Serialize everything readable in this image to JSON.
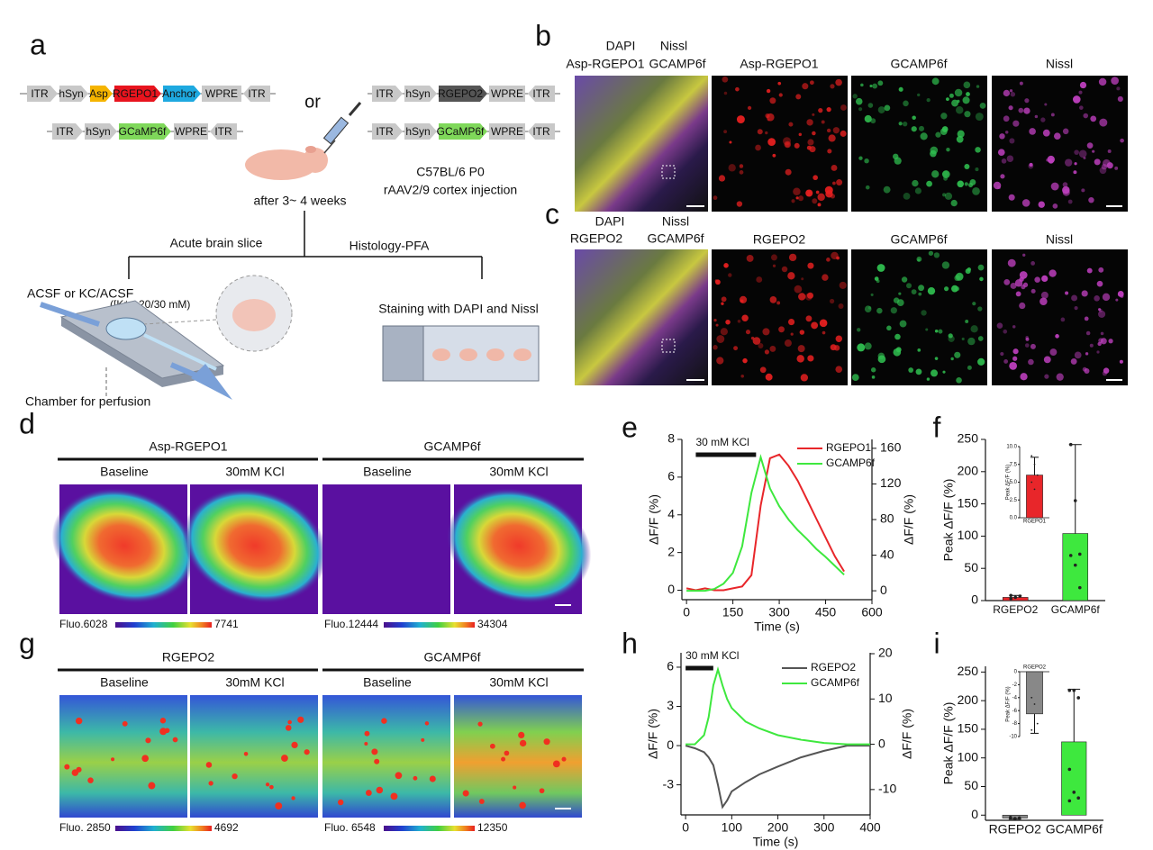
{
  "panel_labels": [
    "a",
    "b",
    "c",
    "d",
    "e",
    "f",
    "g",
    "h",
    "i"
  ],
  "panel_a": {
    "constructs": [
      [
        "ITR",
        "hSyn",
        "Asp",
        "RGEPO1",
        "Anchor",
        "WPRE",
        "ITR"
      ],
      [
        "ITR",
        "hSyn",
        "GCaMP6f",
        "WPRE",
        "ITR"
      ],
      [
        "ITR",
        "hSyn",
        "RGEPO2",
        "WPRE",
        "ITR"
      ],
      [
        "ITR",
        "hSyn",
        "GCaMP6f",
        "WPRE",
        "ITR"
      ]
    ],
    "or": "or",
    "mouse_strain": "C57BL/6 P0",
    "injection": "rAAV2/9 cortex injection",
    "timing": "after 3~ 4 weeks",
    "branch_left": "Acute brain slice",
    "branch_right": "Histology-PFA",
    "solution": "ACSF or KC/ACSF",
    "concentration": "([K⁺= 20/30 mM)",
    "chamber": "Chamber for perfusion",
    "staining": "Staining with DAPI and Nissl"
  },
  "panel_b": {
    "merge_labels": [
      "DAPI",
      "Nissl",
      "Asp-RGEPO1",
      "GCAMP6f"
    ],
    "columns": [
      "Asp-RGEPO1",
      "GCAMP6f",
      "Nissl"
    ]
  },
  "panel_c": {
    "merge_labels": [
      "DAPI",
      "Nissl",
      "RGEPO2",
      "GCAMP6f"
    ],
    "columns": [
      "RGEPO2",
      "GCAMP6f",
      "Nissl"
    ]
  },
  "panel_d": {
    "groups": [
      "Asp-RGEPO1",
      "GCAMP6f"
    ],
    "conditions": [
      "Baseline",
      "30mM KCl",
      "Baseline",
      "30mM KCl"
    ],
    "colorbars": [
      [
        "Fluo.6028",
        "7741"
      ],
      [
        "Fluo.12444",
        "34304"
      ]
    ]
  },
  "panel_g": {
    "groups": [
      "RGEPO2",
      "GCAMP6f"
    ],
    "conditions": [
      "Baseline",
      "30mM KCl",
      "Baseline",
      "30mM KCl"
    ],
    "colorbars": [
      [
        "Fluo. 2850",
        "4692"
      ],
      [
        "Fluo. 6548",
        "12350"
      ]
    ]
  },
  "chart_data": [
    {
      "type": "line",
      "x": [
        0,
        30,
        60,
        90,
        120,
        150,
        180,
        210,
        240,
        270,
        300,
        330,
        360,
        390,
        420,
        450,
        480,
        510
      ],
      "series": [
        {
          "name": "RGEPO1",
          "color": "#e8262a",
          "values": [
            0.1,
            0,
            0.1,
            0,
            0,
            0.1,
            0.2,
            0.8,
            4.5,
            7.0,
            7.2,
            6.6,
            5.8,
            4.8,
            3.8,
            2.8,
            1.8,
            1.0
          ]
        },
        {
          "name": "GCAMP6f",
          "color": "#3ee83e",
          "axis": "y2",
          "values": [
            0,
            0,
            0,
            2,
            8,
            20,
            50,
            110,
            150,
            115,
            95,
            80,
            68,
            58,
            47,
            38,
            28,
            18
          ]
        }
      ],
      "xlim": [
        -15,
        600
      ],
      "xticks": [
        0,
        150,
        300,
        450,
        600
      ],
      "ylim": [
        -0.5,
        8
      ],
      "yticks": [
        0,
        2,
        4,
        6,
        8
      ],
      "y2lim": [
        -10,
        170
      ],
      "y2ticks": [
        0,
        40,
        80,
        120,
        160
      ],
      "xlabel": "Time (s)",
      "ylabel": "ΔF/F (%)",
      "y2label": "ΔF/F (%)",
      "ylabel_color": "#e8262a",
      "y2label_color": "#3ee83e",
      "annotation": "30 mM KCl",
      "annotation_span": [
        30,
        225
      ]
    },
    {
      "type": "bar",
      "categories": [
        "RGEPO2",
        "GCAMP6f"
      ],
      "values": [
        5,
        104
      ],
      "errors": [
        3,
        138
      ],
      "colors": [
        "#e8262a",
        "#3ee83e"
      ],
      "points": [
        [
          3,
          5,
          7,
          8
        ],
        [
          242,
          155,
          72,
          70,
          55,
          20
        ]
      ],
      "ylim": [
        0,
        250
      ],
      "yticks": [
        0,
        50,
        100,
        150,
        200,
        250
      ],
      "ylabel": "Peak ΔF/F (%)"
    },
    {
      "type": "bar",
      "categories": [
        "RGEPO1"
      ],
      "values": [
        6
      ],
      "errors": [
        2.5
      ],
      "colors": [
        "#e8262a"
      ],
      "points": [
        [
          8.7,
          7.5,
          6,
          5,
          4
        ]
      ],
      "ylim": [
        0,
        10
      ],
      "yticks": [
        {
          "value": 0,
          "label": "0.0"
        },
        {
          "value": 2.5,
          "label": "2.5"
        },
        {
          "value": 5,
          "label": "5.0"
        },
        {
          "value": 7.5,
          "label": "7.5"
        },
        {
          "value": 10,
          "label": "10.0"
        }
      ],
      "ylabel": "Peak ΔF/F (%)"
    },
    {
      "type": "line",
      "x": [
        0,
        20,
        40,
        50,
        60,
        70,
        80,
        90,
        100,
        130,
        160,
        200,
        250,
        300,
        350,
        400
      ],
      "series": [
        {
          "name": "RGEPO2",
          "color": "#555555",
          "values": [
            0,
            -0.2,
            -0.5,
            -0.9,
            -1.5,
            -3,
            -4.7,
            -4.2,
            -3.5,
            -2.8,
            -2.2,
            -1.6,
            -0.9,
            -0.4,
            0,
            0
          ]
        },
        {
          "name": "GCAMP6f",
          "color": "#3ee83e",
          "axis": "y2",
          "values": [
            0,
            0,
            2,
            6,
            13,
            16.5,
            13,
            10,
            8,
            5,
            3.5,
            2,
            1,
            0.3,
            0,
            0
          ]
        }
      ],
      "xlim": [
        -10,
        400
      ],
      "xticks": [
        0,
        100,
        200,
        300,
        400
      ],
      "ylim": [
        -5.3,
        7.1
      ],
      "yticks": [
        -3,
        0,
        3,
        6
      ],
      "y2lim": [
        -15.6,
        20.2
      ],
      "y2ticks": [
        -10,
        0,
        10,
        20
      ],
      "xlabel": "Time (s)",
      "ylabel": "ΔF/F (%)",
      "y2label": "ΔF/F (%)",
      "ylabel_color": "#111111",
      "y2label_color": "#3ee83e",
      "annotation": "30 mM KCl",
      "annotation_span": [
        0,
        60
      ]
    },
    {
      "type": "bar",
      "categories": [
        "RGEPO2",
        "GCAMP6f"
      ],
      "values": [
        -5,
        128
      ],
      "errors": [
        2,
        92
      ],
      "colors": [
        "#888888",
        "#3ee83e"
      ],
      "points": [
        [
          -4,
          -6,
          -5
        ],
        [
          218,
          218,
          205,
          80,
          40,
          30,
          25
        ]
      ],
      "ylim": [
        -9,
        260
      ],
      "yticks": [
        0,
        50,
        100,
        150,
        200,
        250
      ],
      "ylabel": "Peak ΔF/F (%)"
    },
    {
      "type": "bar",
      "categories": [
        "RGEPO2"
      ],
      "values": [
        -6.5
      ],
      "errors": [
        3
      ],
      "colors": [
        "#888888"
      ],
      "points": [
        [
          -4,
          -5,
          -8,
          -9
        ]
      ],
      "ylim": [
        -10,
        0
      ],
      "yticks": [
        -10,
        -8,
        -6,
        -4,
        -2,
        0
      ],
      "ylabel": "Peak ΔF/F (%)"
    }
  ]
}
